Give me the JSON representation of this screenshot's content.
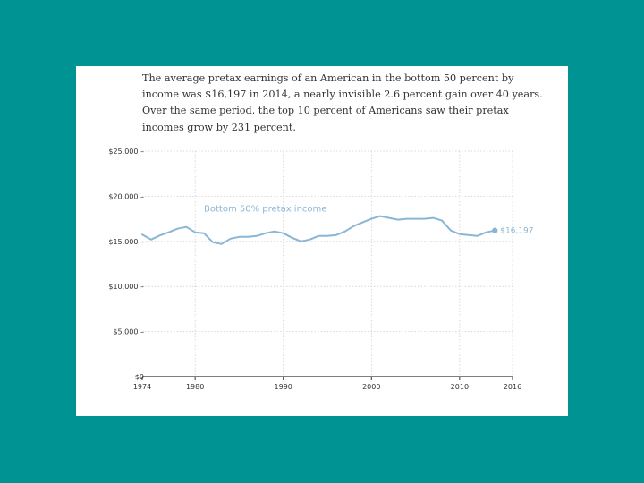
{
  "caption": {
    "lines": [
      "The average pretax earnings of an American in the bottom 50 percent by",
      "income was $16,197 in 2014, a nearly invisible 2.6 percent gain over 40 years.",
      "Over the same period, the top 10 percent of Americans saw their pretax",
      "incomes grow by 231 percent."
    ]
  },
  "chart_data": {
    "type": "line",
    "title": "",
    "xlabel": "",
    "ylabel": "",
    "xlim": [
      1974,
      2016
    ],
    "ylim": [
      0,
      25000
    ],
    "grid": true,
    "x_ticks": [
      1974,
      1980,
      1990,
      2000,
      2010,
      2016
    ],
    "x_tick_labels": [
      "1974",
      "1980",
      "1990",
      "2000",
      "2010",
      "2016"
    ],
    "y_ticks": [
      0,
      5000,
      10000,
      15000,
      20000,
      25000
    ],
    "y_tick_labels": [
      "$0",
      "$5.000 –",
      "$10.000 –",
      "$15.000 –",
      "$20.000 –",
      "$25.000 –"
    ],
    "series": [
      {
        "name": "Bottom 50% pretax income",
        "color": "#8ab6d6",
        "x": [
          1974,
          1975,
          1976,
          1977,
          1978,
          1979,
          1980,
          1981,
          1982,
          1983,
          1984,
          1985,
          1986,
          1987,
          1988,
          1989,
          1990,
          1991,
          1992,
          1993,
          1994,
          1995,
          1996,
          1997,
          1998,
          1999,
          2000,
          2001,
          2002,
          2003,
          2004,
          2005,
          2006,
          2007,
          2008,
          2009,
          2010,
          2011,
          2012,
          2013,
          2014
        ],
        "values": [
          15750,
          15200,
          15650,
          16000,
          16400,
          16600,
          16000,
          15900,
          14900,
          14700,
          15300,
          15500,
          15500,
          15600,
          15900,
          16100,
          15900,
          15400,
          15000,
          15200,
          15600,
          15600,
          15700,
          16100,
          16700,
          17100,
          17500,
          17800,
          17600,
          17400,
          17500,
          17500,
          17500,
          17600,
          17300,
          16200,
          15800,
          15700,
          15600,
          16000,
          16197
        ]
      }
    ],
    "annotations": {
      "series_label": "Bottom 50% pretax income",
      "end_value_label": "$16,197"
    }
  }
}
